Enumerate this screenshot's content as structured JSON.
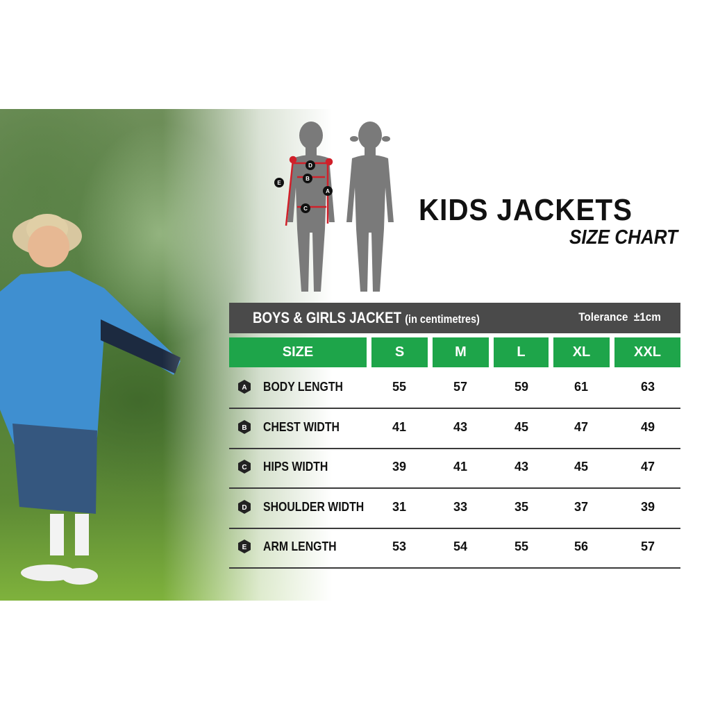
{
  "title": "KIDS JACKETS",
  "subtitle": "SIZE CHART",
  "table": {
    "heading": "BOYS & GIRLS JACKET",
    "unit": "(in centimetres)",
    "tolerance_label": "Tolerance",
    "tolerance_value": "±1cm",
    "size_header": "SIZE",
    "sizes": [
      "S",
      "M",
      "L",
      "XL",
      "XXL"
    ],
    "rows": [
      {
        "badge": "A",
        "label": "BODY LENGTH",
        "values": [
          "55",
          "57",
          "59",
          "61",
          "63"
        ]
      },
      {
        "badge": "B",
        "label": "CHEST WIDTH",
        "values": [
          "41",
          "43",
          "45",
          "47",
          "49"
        ]
      },
      {
        "badge": "C",
        "label": "HIPS  WIDTH",
        "values": [
          "39",
          "41",
          "43",
          "45",
          "47"
        ]
      },
      {
        "badge": "D",
        "label": "SHOULDER WIDTH",
        "values": [
          "31",
          "33",
          "35",
          "37",
          "39"
        ]
      },
      {
        "badge": "E",
        "label": "ARM LENGTH",
        "values": [
          "53",
          "54",
          "55",
          "56",
          "57"
        ]
      }
    ]
  },
  "diagram_markers": [
    "A",
    "B",
    "C",
    "D",
    "E"
  ],
  "colors": {
    "header_bg": "#4a4a4a",
    "size_green": "#1ea54a",
    "measure_red": "#d0202a",
    "silhouette": "#7a7a7a"
  }
}
